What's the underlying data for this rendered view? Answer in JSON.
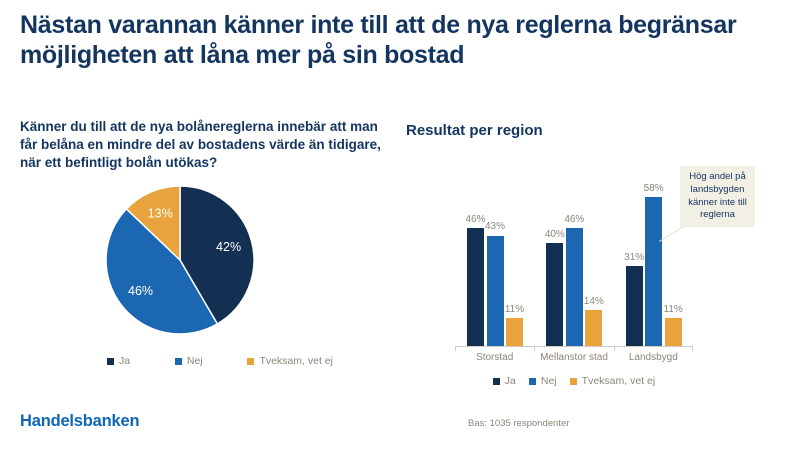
{
  "slide": {
    "title": "Nästan varannan känner inte till att de nya reglerna begränsar möjligheten att låna mer på sin bostad",
    "logo": "Handelsbanken",
    "base_note": "Bas: 1035 respondenter"
  },
  "left_panel": {
    "question": "Känner du till att de nya bolånereglerna innebär att man får belåna en mindre del av bostadens värde än tidigare, när ett befintligt bolån utökas?"
  },
  "right_panel": {
    "heading": "Resultat per region",
    "callout": "Hög andel på landsbygden känner inte till reglerna"
  },
  "colors": {
    "title_navy": "#13355F",
    "series_ja": "#132F52",
    "series_nej": "#1B67B2",
    "series_tveksam": "#E9A33C",
    "text_gray": "#8C8578",
    "logo_blue": "#0E67B3",
    "callout_bg": "#F2EFE5",
    "axis_gray": "#CFCBC0"
  },
  "chart_data": [
    {
      "type": "pie",
      "title": "Känner du till att de nya bolånereglerna innebär att man får belåna en mindre del av bostadens värde än tidigare, när ett befintligt bolån utökas?",
      "labels": [
        "Ja",
        "Nej",
        "Tveksam, vet ej"
      ],
      "values": [
        42,
        46,
        13
      ],
      "colors": [
        "#132F52",
        "#1B67B2",
        "#E9A33C"
      ],
      "value_suffix": "%",
      "start_angle_deg": 0,
      "direction": "clockwise",
      "legend_position": "bottom"
    },
    {
      "type": "bar",
      "title": "Resultat per region",
      "categories": [
        "Storstad",
        "Mellanstor stad",
        "Landsbygd"
      ],
      "series": [
        {
          "name": "Ja",
          "color": "#132F52",
          "values": [
            46,
            40,
            31
          ]
        },
        {
          "name": "Nej",
          "color": "#1B67B2",
          "values": [
            43,
            46,
            58
          ]
        },
        {
          "name": "Tveksam, vet ej",
          "color": "#E9A33C",
          "values": [
            11,
            14,
            11
          ]
        }
      ],
      "value_suffix": "%",
      "ylim": [
        0,
        64
      ],
      "grid": false,
      "legend_position": "bottom",
      "annotation": "Hög andel på landsbygden känner inte till reglerna"
    }
  ]
}
